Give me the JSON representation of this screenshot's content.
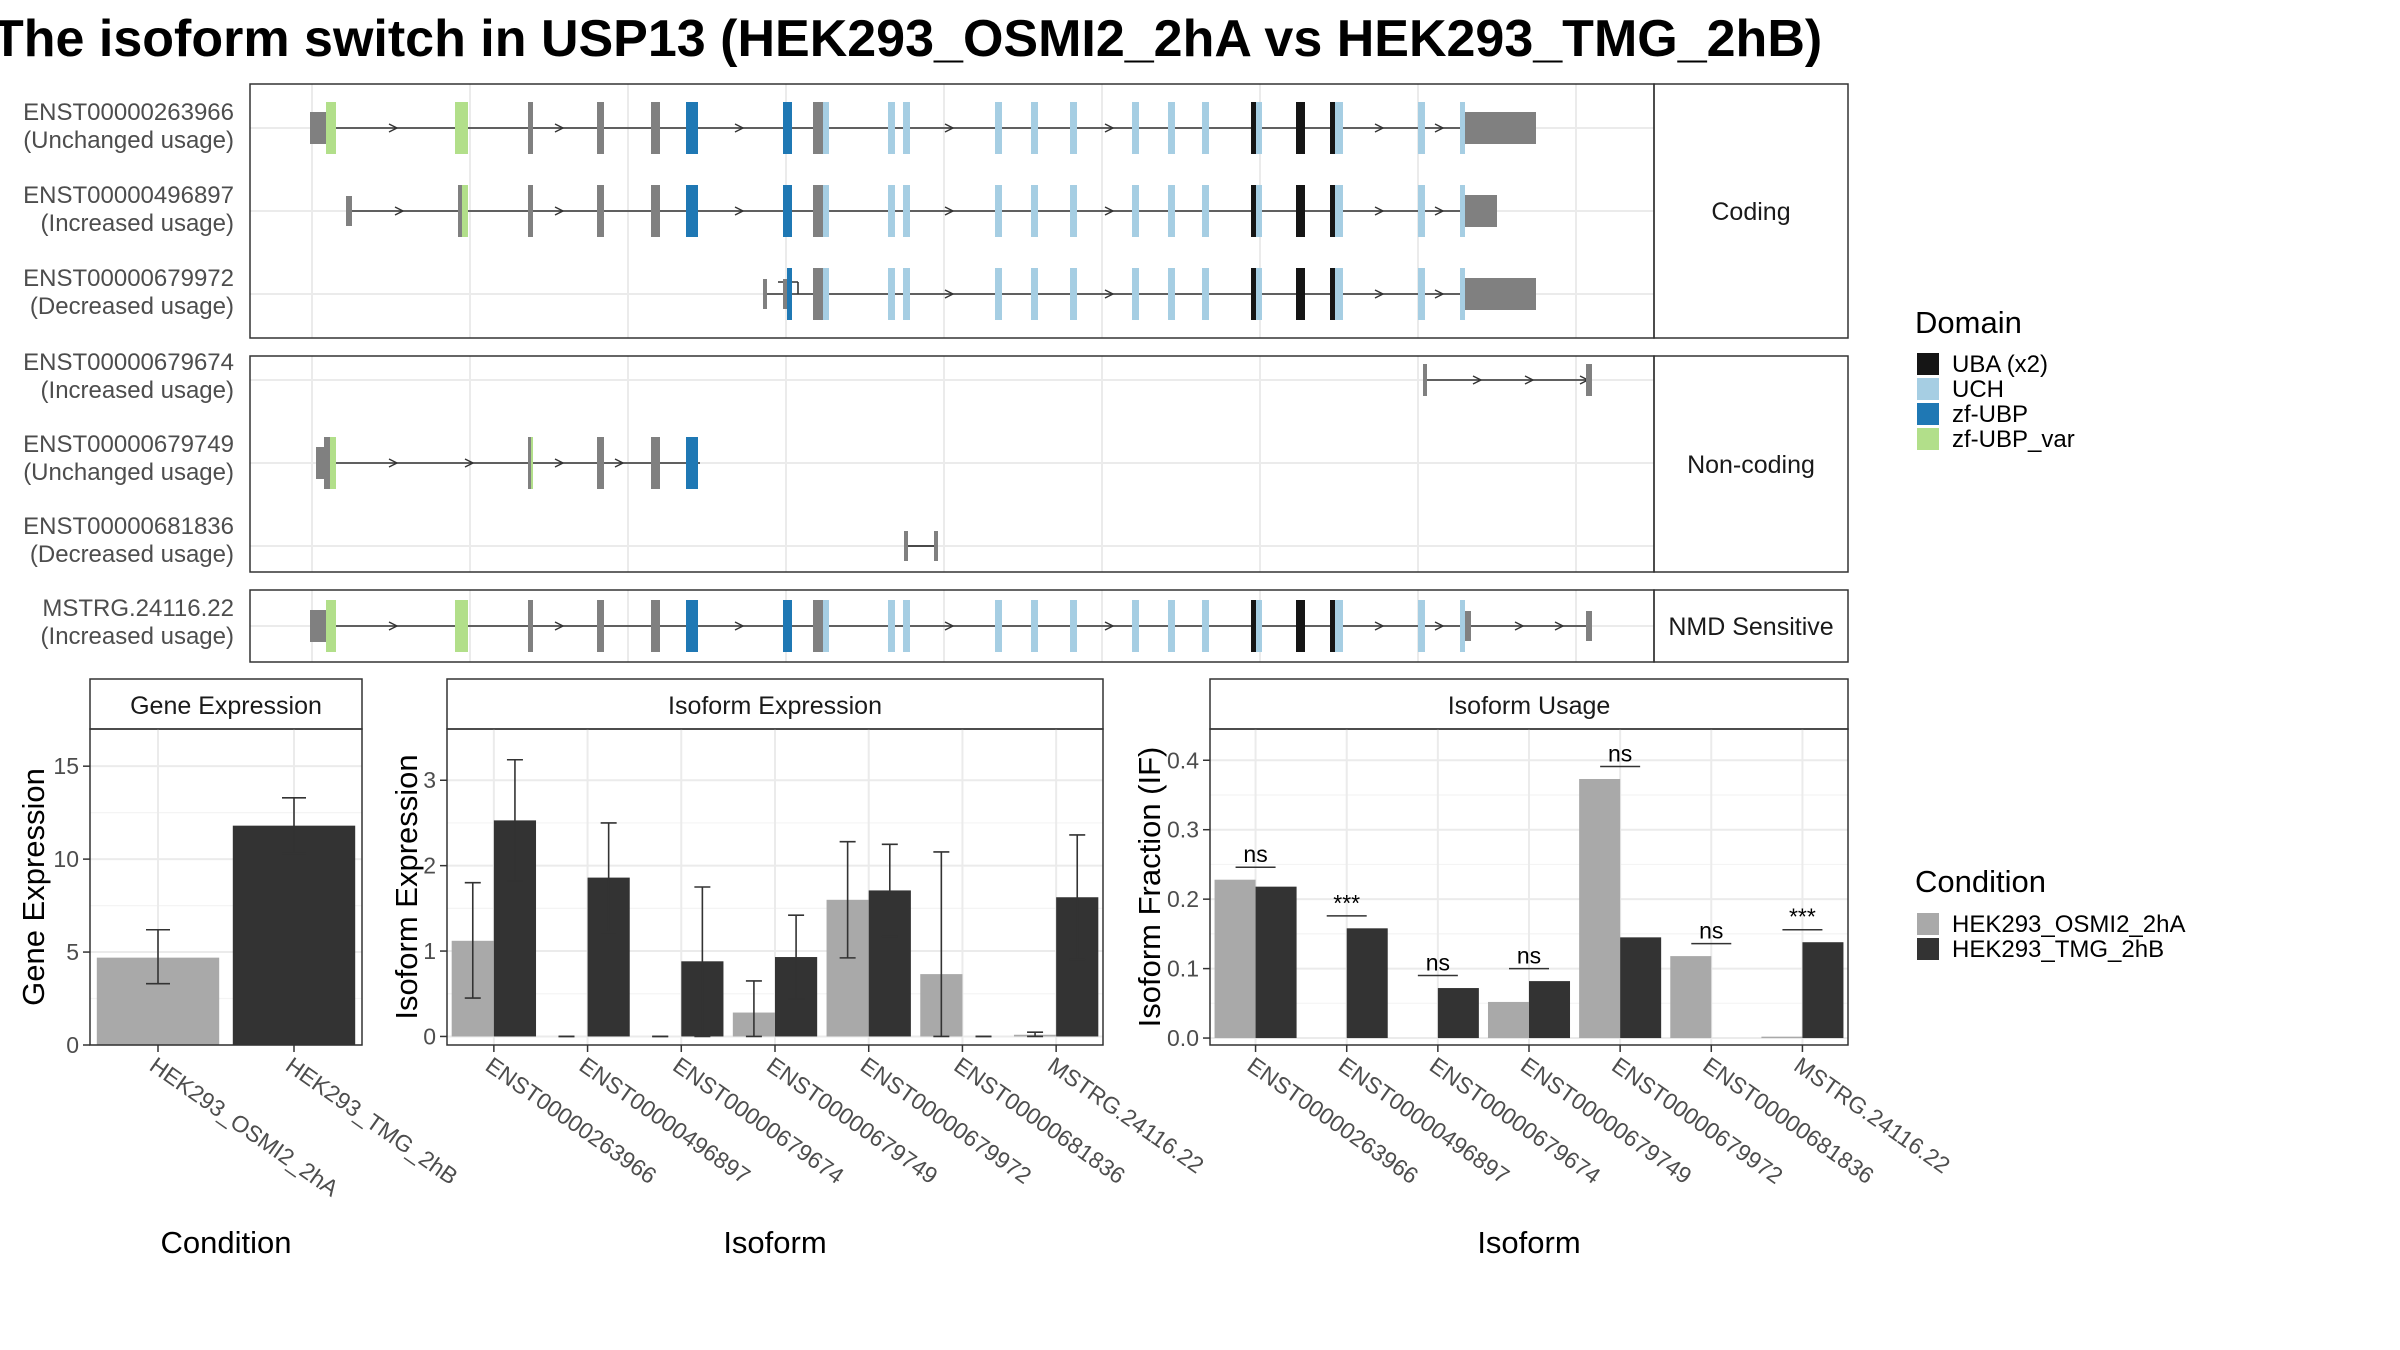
{
  "title": "The isoform switch in USP13 (HEK293_OSMI2_2hA vs HEK293_TMG_2hB)",
  "colors": {
    "UBA (x2)": "#151515",
    "UCH": "#a6cee3",
    "zf-UBP": "#1f78b4",
    "zf-UBP_var": "#b2df8a",
    "exon": "#808080",
    "cond_a": "#a9a9a9",
    "cond_b": "#333333"
  },
  "tracks": {
    "facets": [
      {
        "label": "Coding",
        "transcripts": [
          {
            "id": "ENST00000263966",
            "usage": "(Unchanged usage)"
          },
          {
            "id": "ENST00000496897",
            "usage": "(Increased usage)"
          },
          {
            "id": "ENST00000679972",
            "usage": "(Decreased usage)"
          }
        ]
      },
      {
        "label": "Non-coding",
        "transcripts": [
          {
            "id": "ENST00000679674",
            "usage": "(Increased usage)"
          },
          {
            "id": "ENST00000679749",
            "usage": "(Unchanged usage)"
          },
          {
            "id": "ENST00000681836",
            "usage": "(Decreased usage)"
          }
        ]
      },
      {
        "label": "NMD Sensitive",
        "transcripts": [
          {
            "id": "MSTRG.24116.22",
            "usage": "(Increased usage)"
          }
        ]
      }
    ]
  },
  "legends": {
    "domain": {
      "title": "Domain",
      "items": [
        "UBA (x2)",
        "UCH",
        "zf-UBP",
        "zf-UBP_var"
      ]
    },
    "condition": {
      "title": "Condition",
      "items": [
        "HEK293_OSMI2_2hA",
        "HEK293_TMG_2hB"
      ]
    }
  },
  "chart_data": [
    {
      "type": "bar",
      "title": "Gene Expression",
      "xlabel": "Condition",
      "ylabel": "Gene Expression",
      "categories": [
        "HEK293_OSMI2_2hA",
        "HEK293_TMG_2hB"
      ],
      "values": [
        4.7,
        11.8
      ],
      "errors": [
        [
          3.3,
          6.2
        ],
        [
          10.3,
          13.3
        ]
      ],
      "ylim": [
        0,
        17
      ],
      "yticks": [
        0,
        5,
        10,
        15
      ]
    },
    {
      "type": "bar",
      "title": "Isoform Expression",
      "xlabel": "Isoform",
      "ylabel": "Isoform Expression",
      "categories": [
        "ENST00000263966",
        "ENST00000496897",
        "ENST00000679674",
        "ENST00000679749",
        "ENST00000679972",
        "ENST00000681836",
        "MSTRG.24116.22"
      ],
      "series": [
        {
          "name": "HEK293_OSMI2_2hA",
          "values": [
            1.12,
            0.0,
            0.0,
            0.28,
            1.6,
            0.73,
            0.02
          ],
          "errors": [
            [
              0.45,
              1.8
            ],
            [
              0.0,
              0.0
            ],
            [
              0.0,
              0.0
            ],
            [
              0.0,
              0.65
            ],
            [
              0.92,
              2.28
            ],
            [
              0.0,
              2.16
            ],
            [
              0.0,
              0.05
            ]
          ]
        },
        {
          "name": "HEK293_TMG_2hB",
          "values": [
            2.53,
            1.86,
            0.88,
            0.93,
            1.71,
            0.0,
            1.63
          ],
          "errors": [
            [
              1.82,
              3.24
            ],
            [
              1.22,
              2.5
            ],
            [
              0.0,
              1.75
            ],
            [
              0.44,
              1.42
            ],
            [
              1.17,
              2.25
            ],
            [
              0.0,
              0.0
            ],
            [
              0.9,
              2.36
            ]
          ]
        }
      ],
      "ylim": [
        -0.1,
        3.6
      ],
      "yticks": [
        0,
        1,
        2,
        3
      ]
    },
    {
      "type": "bar",
      "title": "Isoform Usage",
      "xlabel": "Isoform",
      "ylabel": "Isoform Fraction (IF)",
      "categories": [
        "ENST00000263966",
        "ENST00000496897",
        "ENST00000679674",
        "ENST00000679749",
        "ENST00000679972",
        "ENST00000681836",
        "MSTRG.24116.22"
      ],
      "series": [
        {
          "name": "HEK293_OSMI2_2hA",
          "values": [
            0.228,
            0.0,
            0.0,
            0.052,
            0.373,
            0.118,
            0.002
          ]
        },
        {
          "name": "HEK293_TMG_2hB",
          "values": [
            0.218,
            0.158,
            0.072,
            0.082,
            0.145,
            0.0,
            0.138
          ]
        }
      ],
      "significance": [
        "ns",
        "***",
        "ns",
        "ns",
        "ns",
        "ns",
        "***"
      ],
      "ylim": [
        -0.01,
        0.445
      ],
      "yticks": [
        0.0,
        0.1,
        0.2,
        0.3,
        0.4
      ],
      "ytick_labels": [
        "0.0",
        "0.1",
        "0.2",
        "0.3",
        "0.4"
      ]
    }
  ]
}
